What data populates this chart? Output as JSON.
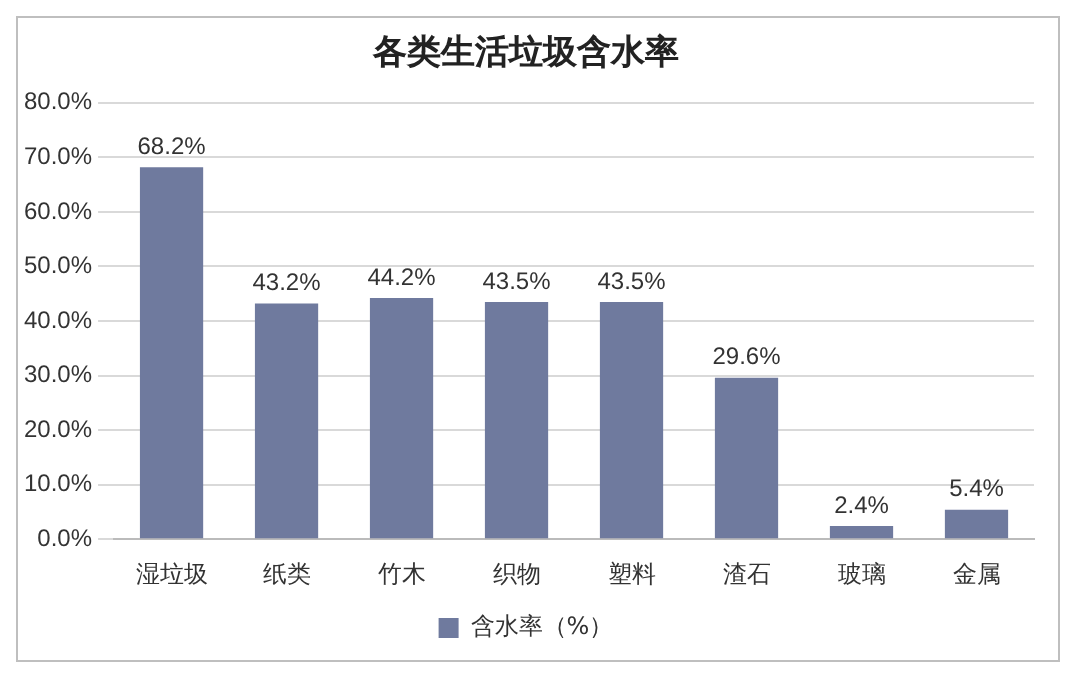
{
  "chart_data": {
    "type": "bar",
    "title": "各类生活垃圾含水率",
    "categories": [
      "湿垃圾",
      "纸类",
      "竹木",
      "织物",
      "塑料",
      "渣石",
      "玻璃",
      "金属"
    ],
    "series": [
      {
        "name": "含水率（%）",
        "color": "#6f7a9e",
        "values": [
          68.2,
          43.2,
          44.2,
          43.5,
          43.5,
          29.6,
          2.4,
          5.4
        ]
      }
    ],
    "value_labels": [
      "68.2%",
      "43.2%",
      "44.2%",
      "43.5%",
      "43.5%",
      "29.6%",
      "2.4%",
      "5.4%"
    ],
    "ylim": [
      0,
      80
    ],
    "yticks": [
      {
        "value": 0,
        "label": "0.0%"
      },
      {
        "value": 10,
        "label": "10.0%"
      },
      {
        "value": 20,
        "label": "20.0%"
      },
      {
        "value": 30,
        "label": "30.0%"
      },
      {
        "value": 40,
        "label": "40.0%"
      },
      {
        "value": 50,
        "label": "50.0%"
      },
      {
        "value": 60,
        "label": "60.0%"
      },
      {
        "value": 70,
        "label": "70.0%"
      },
      {
        "value": 80,
        "label": "80.0%"
      }
    ],
    "grid": "y",
    "legend": "bottom"
  }
}
